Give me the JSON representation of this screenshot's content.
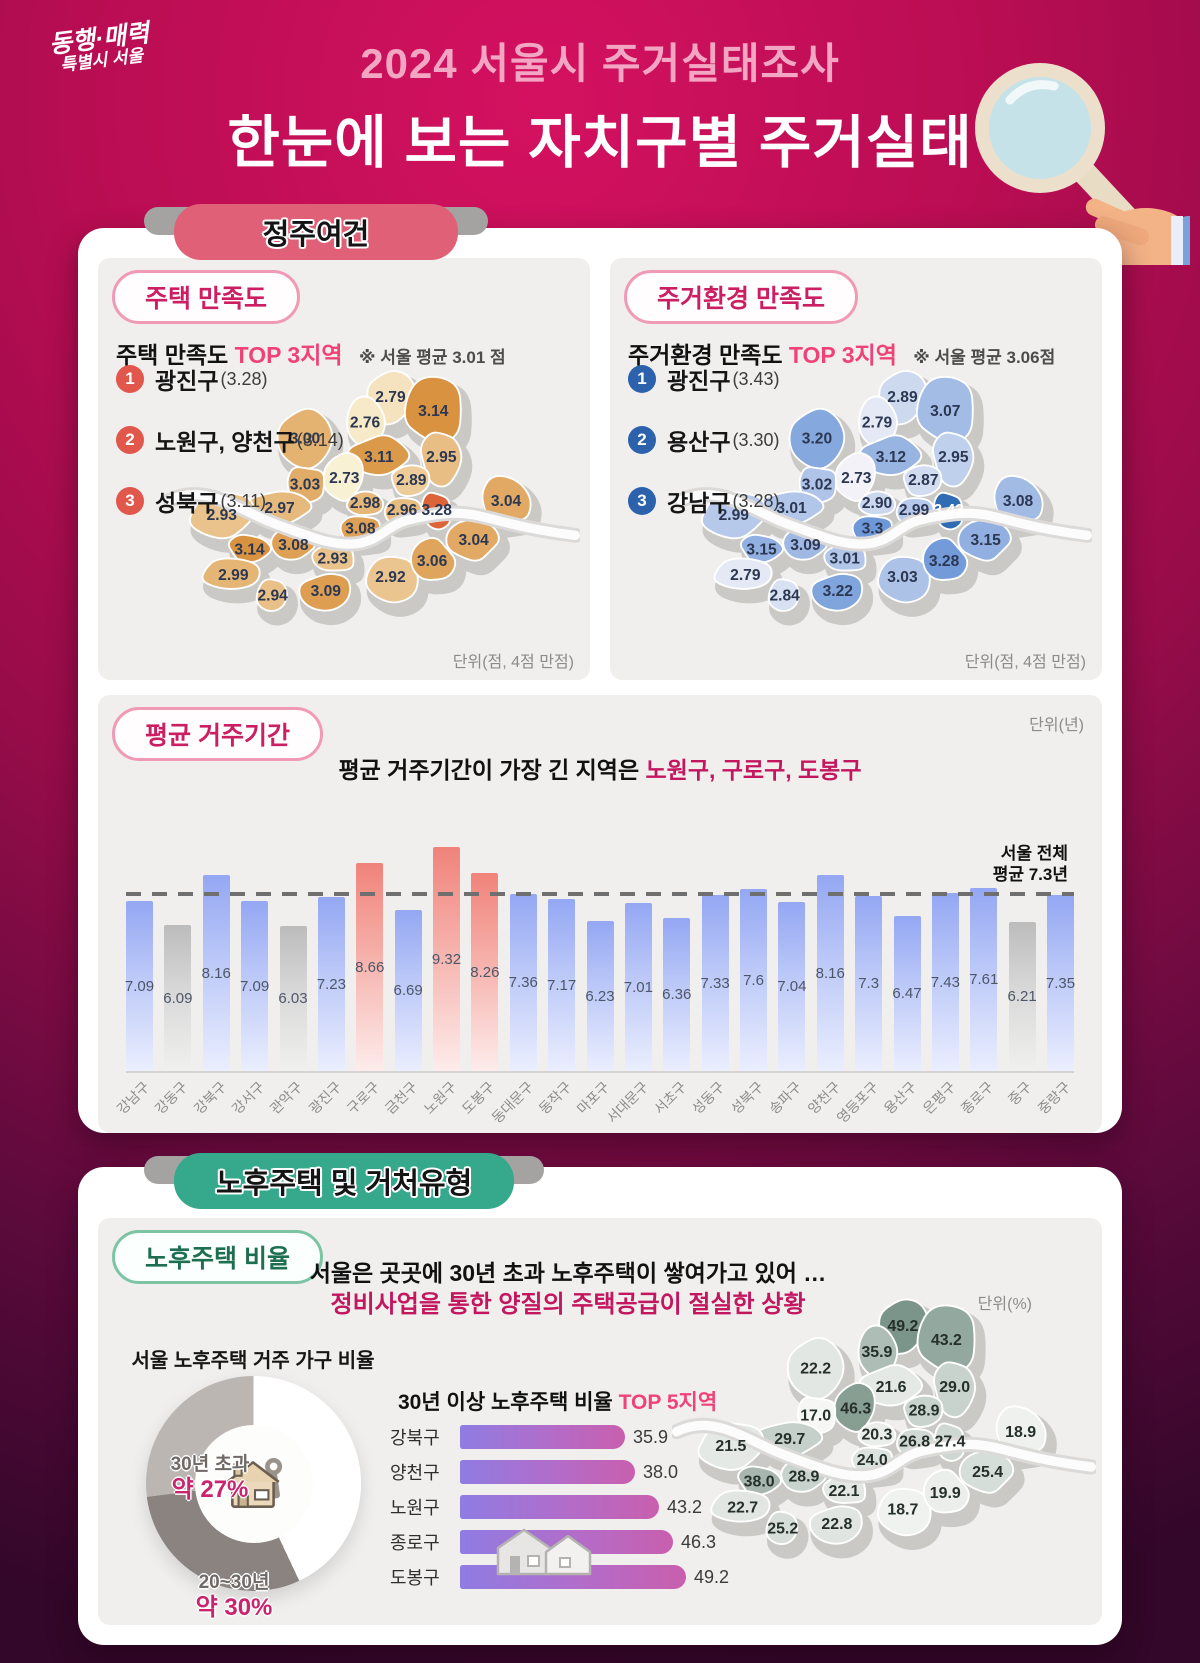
{
  "colors": {
    "background_magenta": "#b80d52",
    "header_subtitle_pink": "#f3a6c4",
    "ribbon_pink": "#e06077",
    "ribbon_green": "#36a98d",
    "accent_pink": "#ef4377",
    "accent_magenta": "#c4165f",
    "rank_badge_red": "#e2574b",
    "rank_badge_blue": "#2c62ac",
    "bar_blue": "#94a7f3",
    "bar_red": "#f0837a",
    "bar_gray": "#bdbdbd",
    "top5_bar_gradient": [
      "#8f7ce3",
      "#c95fae"
    ],
    "map_orange_max": "#dd6438",
    "map_blue_max": "#2f6cb4"
  },
  "header": {
    "logo_line1": "동행·매력",
    "logo_line2": "특별시 서울",
    "subtitle": "2024 서울시 주거실태조사",
    "title": "한눈에 보는 자치구별 주거실태"
  },
  "settlement": {
    "section_label": "정주여건",
    "housing": {
      "pill": "주택 만족도",
      "heading": "주택 만족도",
      "heading_highlight": "TOP 3지역",
      "note": "※ 서울 평균 3.01 점",
      "rankings": [
        {
          "rank": "1",
          "name": "광진구",
          "score": "(3.28)"
        },
        {
          "rank": "2",
          "name": "노원구, 양천구",
          "score": "(3.14)"
        },
        {
          "rank": "3",
          "name": "성북구",
          "score": "(3.11)"
        }
      ],
      "unit": "단위(점, 4점 만점)"
    },
    "environment": {
      "pill": "주거환경 만족도",
      "heading": "주거환경 만족도",
      "heading_highlight": "TOP 3지역",
      "note": "※ 서울 평균 3.06점",
      "rankings": [
        {
          "rank": "1",
          "name": "광진구",
          "score": "(3.43)"
        },
        {
          "rank": "2",
          "name": "용산구",
          "score": "(3.30)"
        },
        {
          "rank": "3",
          "name": "강남구",
          "score": "(3.28)"
        }
      ],
      "unit": "단위(점, 4점 만점)"
    }
  },
  "residence": {
    "pill": "평균 거주기간",
    "unit": "단위(년)",
    "subtitle": "평균 거주기간이 가장 긴 지역은 ",
    "subtitle_highlight": "노원구, 구로구, 도봉구",
    "avg_line1": "서울 전체",
    "avg_line2": "평균 7.3년"
  },
  "aging": {
    "section_label": "노후주택 및 거처유형",
    "pill": "노후주택 비율",
    "headline1": "서울은 곳곳에 30년 초과 노후주택이 쌓여가고 있어 …",
    "headline2": "정비사업을 통한 양질의 주택공급이  절실한 상황",
    "unit": "단위(%)",
    "donut_title": "서울 노후주택 거주 가구 비율",
    "top5_title": "30년 이상 노후주택 비율 ",
    "top5_title_highlight": "TOP 5지역"
  },
  "chart_data": [
    {
      "id": "housing-satisfaction-map",
      "type": "heatmap",
      "title": "주택 만족도",
      "unit": "점, 4점 만점",
      "seoul_average": 3.01,
      "palette": "orange",
      "values": {
        "강남구": "3.06",
        "강동구": "3.04",
        "강북구": "2.76",
        "강서구": "2.93",
        "관악구": "3.09",
        "광진구": "3.28",
        "구로구": "2.99",
        "금천구": "2.94",
        "노원구": "3.14",
        "도봉구": "2.79",
        "동대문구": "2.89",
        "동작구": "2.93",
        "마포구": "2.97",
        "서대문구": "3.03",
        "서초구": "2.92",
        "성동구": "2.96",
        "성북구": "3.11",
        "송파구": "3.04",
        "양천구": "3.14",
        "영등포구": "3.08",
        "용산구": "3.08",
        "은평구": "3.00",
        "종로구": "2.73",
        "중구": "2.98",
        "중랑구": "2.95"
      }
    },
    {
      "id": "environment-satisfaction-map",
      "type": "heatmap",
      "title": "주거환경 만족도",
      "unit": "점, 4점 만점",
      "seoul_average": 3.06,
      "palette": "blue",
      "values": {
        "강남구": "3.28",
        "강동구": "3.08",
        "강북구": "2.79",
        "강서구": "2.99",
        "관악구": "3.22",
        "광진구": "3.43",
        "구로구": "2.79",
        "금천구": "2.84",
        "노원구": "3.07",
        "도봉구": "2.89",
        "동대문구": "2.87",
        "동작구": "3.01",
        "마포구": "3.01",
        "서대문구": "3.02",
        "서초구": "3.03",
        "성동구": "2.99",
        "성북구": "3.12",
        "송파구": "3.15",
        "양천구": "3.15",
        "영등포구": "3.09",
        "용산구": "3.3",
        "은평구": "3.20",
        "종로구": "2.73",
        "중구": "2.90",
        "중랑구": "2.95"
      }
    },
    {
      "id": "residence-period-bar",
      "type": "bar",
      "ylabel": "년",
      "reference_line": 7.3,
      "reference_label": [
        "서울 전체",
        "평균 7.3년"
      ],
      "categories": [
        "강남구",
        "강동구",
        "강북구",
        "강서구",
        "관악구",
        "광진구",
        "구로구",
        "금천구",
        "노원구",
        "도봉구",
        "동대문구",
        "동작구",
        "마포구",
        "서대문구",
        "서초구",
        "성동구",
        "성북구",
        "송파구",
        "양천구",
        "영등포구",
        "용산구",
        "은평구",
        "종로구",
        "중구",
        "중랑구"
      ],
      "values": [
        "7.09",
        "6.09",
        "8.16",
        "7.09",
        "6.03",
        "7.23",
        "8.66",
        "6.69",
        "9.32",
        "8.26",
        "7.36",
        "7.17",
        "6.23",
        "7.01",
        "6.36",
        "7.33",
        "7.6",
        "7.04",
        "8.16",
        "7.3",
        "6.47",
        "7.43",
        "7.61",
        "6.21",
        "7.35"
      ],
      "highlight_red": [
        "구로구",
        "노원구",
        "도봉구"
      ],
      "highlight_gray": [
        "강동구",
        "관악구",
        "중구"
      ]
    },
    {
      "id": "aging-households-donut",
      "type": "pie",
      "title": "서울 노후주택 거주 가구 비율",
      "slices": [
        {
          "label": "",
          "value_label": "",
          "percent": 43,
          "color": "#ffffff"
        },
        {
          "label": "20~30년",
          "value_label": "약 30%",
          "percent": 30,
          "color": "#8b8380"
        },
        {
          "label": "30년 초과",
          "value_label": "약 27%",
          "percent": 27,
          "color": "#bcb6b2"
        }
      ]
    },
    {
      "id": "aging-top5-bar",
      "type": "bar",
      "title": "30년 이상 노후주택 비율 TOP 5지역",
      "categories": [
        "강북구",
        "양천구",
        "노원구",
        "종로구",
        "도봉구"
      ],
      "values": [
        "35.9",
        "38.0",
        "43.2",
        "46.3",
        "49.2"
      ]
    },
    {
      "id": "aging-ratio-map",
      "type": "heatmap",
      "unit": "%",
      "palette": "green",
      "values": {
        "강남구": "19.9",
        "강동구": "18.9",
        "강북구": "35.9",
        "강서구": "21.5",
        "관악구": "22.8",
        "광진구": "27.4",
        "구로구": "22.7",
        "금천구": "25.2",
        "노원구": "43.2",
        "도봉구": "49.2",
        "동대문구": "28.9",
        "동작구": "22.1",
        "마포구": "29.7",
        "서대문구": "17.0",
        "서초구": "18.7",
        "성동구": "26.8",
        "성북구": "21.6",
        "송파구": "25.4",
        "양천구": "38.0",
        "영등포구": "28.9",
        "용산구": "24.0",
        "은평구": "22.2",
        "종로구": "46.3",
        "중구": "20.3",
        "중랑구": "29.0"
      }
    }
  ]
}
